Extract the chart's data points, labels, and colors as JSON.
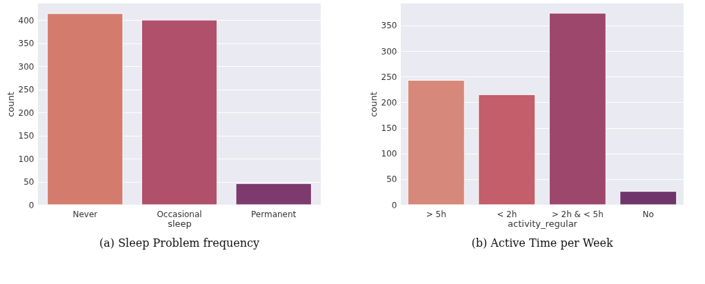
{
  "chart_data": [
    {
      "type": "bar",
      "title": "(a) Sleep Problem frequency",
      "xlabel": "sleep",
      "ylabel": "count",
      "categories": [
        "Never",
        "Occasional",
        "Permanent"
      ],
      "values": [
        414,
        400,
        46
      ],
      "colors": [
        "#d37b6d",
        "#b0506b",
        "#7d3a6d"
      ],
      "ylim": [
        0,
        436
      ],
      "yticks": [
        0,
        50,
        100,
        150,
        200,
        250,
        300,
        350,
        400
      ],
      "grid": "y"
    },
    {
      "type": "bar",
      "title": "(b) Active Time per Week",
      "xlabel": "activity_regular",
      "ylabel": "count",
      "categories": [
        "> 5h",
        "< 2h",
        "> 2h & < 5h",
        "No"
      ],
      "values": [
        243,
        215,
        374,
        26
      ],
      "colors": [
        "#d6887a",
        "#c35e6a",
        "#9e476d",
        "#70356b"
      ],
      "ylim": [
        0,
        393
      ],
      "yticks": [
        0,
        50,
        100,
        150,
        200,
        250,
        300,
        350
      ],
      "grid": "y"
    }
  ]
}
